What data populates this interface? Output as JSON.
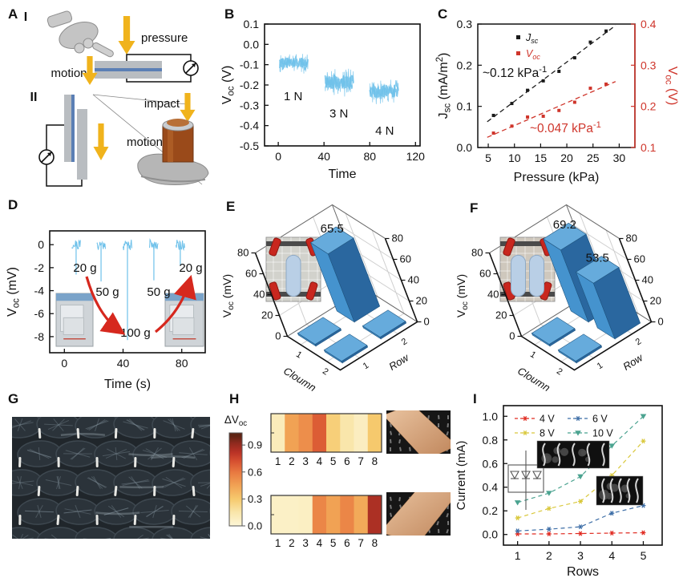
{
  "panels": [
    {
      "id": "A",
      "label": "A"
    },
    {
      "id": "B",
      "label": "B"
    },
    {
      "id": "C",
      "label": "C"
    },
    {
      "id": "D",
      "label": "D"
    },
    {
      "id": "E",
      "label": "E"
    },
    {
      "id": "F",
      "label": "F"
    },
    {
      "id": "G",
      "label": "G"
    },
    {
      "id": "H",
      "label": "H"
    },
    {
      "id": "I",
      "label": "I"
    }
  ],
  "panelA": {
    "sub1": "I",
    "sub2": "II",
    "pressure_label": "pressure",
    "motion1_label": "motion",
    "impact_label": "impact",
    "motion2_label": "motion",
    "arrow_color": "#f0b31c",
    "film_color": "#5b7fb5",
    "bar_color": "#b9bdc1"
  },
  "panelG": {
    "type": "photo",
    "content": "dark woven textile with white stitch marks"
  },
  "chart_data": [
    {
      "id": "B",
      "type": "line",
      "title": "",
      "xlabel": "Time",
      "ylabel": "V_{oc} (V)",
      "xlim": [
        -12,
        124
      ],
      "ylim": [
        -0.5,
        0.1
      ],
      "xticks": [
        0,
        40,
        80,
        120
      ],
      "yticks": [
        0.1,
        0.0,
        -0.1,
        -0.2,
        -0.3,
        -0.4,
        -0.5
      ],
      "grid": false,
      "line_color": "#6ec1ea",
      "bursts": [
        {
          "label": "1 N",
          "t_start": 1,
          "t_end": 26,
          "mean": -0.09,
          "amp": 0.055
        },
        {
          "label": "3 N",
          "t_start": 41,
          "t_end": 66,
          "mean": -0.185,
          "amp": 0.075
        },
        {
          "label": "4 N",
          "t_start": 80,
          "t_end": 105,
          "mean": -0.23,
          "amp": 0.07
        }
      ]
    },
    {
      "id": "C",
      "type": "scatter",
      "xlabel": "Pressure (kPa)",
      "ylabel_left": "J_{sc} (mA/m^{2})",
      "ylabel_right": "V_{oc} (V)",
      "xlim": [
        3,
        33
      ],
      "xticks": [
        5,
        10,
        15,
        20,
        25,
        30
      ],
      "ylim_left": [
        0.0,
        0.3
      ],
      "yticks_left": [
        0.0,
        0.1,
        0.2,
        0.3
      ],
      "ylim_right": [
        0.1,
        0.4
      ],
      "yticks_right": [
        0.1,
        0.2,
        0.3,
        0.4
      ],
      "right_axis_color": "#cf352b",
      "legend_position": "top-left",
      "series": [
        {
          "name": "J_{sc}",
          "color": "#1a1a1a",
          "axis": "left",
          "x": [
            6,
            9.5,
            12.5,
            15.5,
            18.5,
            21.5,
            24.5,
            27.5
          ],
          "y": [
            0.078,
            0.107,
            0.139,
            0.162,
            0.185,
            0.218,
            0.256,
            0.283
          ],
          "annotation": "~0.12 kPa^{-1}"
        },
        {
          "name": "V_{oc}",
          "color": "#cf352b",
          "axis": "right",
          "x": [
            6,
            9.5,
            12.5,
            15.5,
            18.5,
            21.5,
            24.5,
            27.5
          ],
          "y": [
            0.135,
            0.152,
            0.174,
            0.176,
            0.19,
            0.21,
            0.244,
            0.254
          ],
          "annotation": "~0.047 kPa^{-1}"
        }
      ]
    },
    {
      "id": "D",
      "type": "line",
      "xlabel": "Time (s)",
      "ylabel": "V_{oc} (mV)",
      "xlim": [
        -10,
        96
      ],
      "ylim": [
        -9.4,
        1.2
      ],
      "xticks": [
        0,
        40,
        80
      ],
      "yticks": [
        0,
        -2,
        -4,
        -6,
        -8
      ],
      "line_color": "#6ec1ea",
      "arrow_color": "#d6281e",
      "spikes": [
        {
          "t": 8,
          "depth": -2.6,
          "label": "20 g"
        },
        {
          "t": 25,
          "depth": -3.2,
          "label": "50 g"
        },
        {
          "t": 43,
          "depth": -8.3,
          "label": "100 g"
        },
        {
          "t": 61,
          "depth": -3.1,
          "label": "50 g"
        },
        {
          "t": 79,
          "depth": -1.8,
          "label": "20 g"
        }
      ]
    },
    {
      "id": "E",
      "type": "bar3d",
      "ylabel": "V_{oc} (mV)",
      "zlim": [
        0,
        80
      ],
      "zticks": [
        0,
        20,
        40,
        60,
        80
      ],
      "col_label": "Cloumn",
      "row_label": "Row",
      "col_ticks": [
        1,
        2
      ],
      "row_ticks": [
        1,
        2
      ],
      "bar_colors": {
        "front": "#4593ce",
        "side": "#2a679f",
        "top": "#66abdc"
      },
      "bars": [
        {
          "col": 1,
          "row": 1,
          "value": 1.8
        },
        {
          "col": 2,
          "row": 1,
          "value": 1.8
        },
        {
          "col": 2,
          "row": 2,
          "value": 1.8
        },
        {
          "col": 1,
          "row": 2,
          "value": 65.5,
          "label": "65.5"
        }
      ]
    },
    {
      "id": "F",
      "type": "bar3d",
      "ylabel": "V_{oc} (mV)",
      "zlim": [
        0,
        80
      ],
      "zticks": [
        0,
        20,
        40,
        60,
        80
      ],
      "col_label": "Cloumn",
      "row_label": "Row",
      "col_ticks": [
        1,
        2
      ],
      "row_ticks": [
        1,
        2
      ],
      "bar_colors": {
        "front": "#4593ce",
        "side": "#2a679f",
        "top": "#66abdc"
      },
      "bars": [
        {
          "col": 1,
          "row": 1,
          "value": 1.8
        },
        {
          "col": 2,
          "row": 1,
          "value": 1.8
        },
        {
          "col": 1,
          "row": 2,
          "value": 69.2,
          "label": "69.2"
        },
        {
          "col": 2,
          "row": 2,
          "value": 53.5,
          "label": "53.5"
        }
      ]
    },
    {
      "id": "H",
      "type": "heatmap",
      "colorbar_label": "ΔV_{oc}",
      "colorbar_ticks": [
        0.0,
        0.3,
        0.6,
        0.9
      ],
      "colormap_stops": [
        [
          0,
          "#fdf6d8"
        ],
        [
          0.15,
          "#f9e6ab"
        ],
        [
          0.3,
          "#f6c96d"
        ],
        [
          0.45,
          "#f1a254"
        ],
        [
          0.6,
          "#e87840"
        ],
        [
          0.72,
          "#d64f30"
        ],
        [
          0.82,
          "#b93226"
        ],
        [
          0.92,
          "#8f2a1e"
        ],
        [
          1,
          "#5f2414"
        ]
      ],
      "cell_labels": [
        1,
        2,
        3,
        4,
        5,
        6,
        7,
        8
      ],
      "rows": [
        {
          "values": [
            0.1,
            0.45,
            0.52,
            0.68,
            0.27,
            0.15,
            0.08,
            0.3
          ]
        },
        {
          "values": [
            0.06,
            0.06,
            0.07,
            0.55,
            0.45,
            0.55,
            0.42,
            0.85
          ]
        }
      ]
    },
    {
      "id": "I",
      "type": "line",
      "xlabel": "Rows",
      "ylabel": "Current (mA)",
      "xlim": [
        0.55,
        5.6
      ],
      "ylim": [
        -0.09,
        1.09
      ],
      "xticks": [
        1,
        2,
        3,
        4,
        5
      ],
      "yticks": [
        0.0,
        0.2,
        0.4,
        0.6,
        0.8,
        1.0
      ],
      "legend_position": "top-left",
      "x": [
        1,
        2,
        3,
        4,
        5
      ],
      "series": [
        {
          "name": "4 V",
          "color": "#e02a20",
          "marker": "star",
          "values": [
            0.005,
            0.005,
            0.008,
            0.012,
            0.015
          ]
        },
        {
          "name": "6 V",
          "color": "#3c6da6",
          "marker": "star",
          "values": [
            0.03,
            0.045,
            0.065,
            0.18,
            0.245
          ]
        },
        {
          "name": "8 V",
          "color": "#d9c83c",
          "marker": "star",
          "values": [
            0.14,
            0.22,
            0.28,
            0.5,
            0.79
          ]
        },
        {
          "name": "10 V",
          "color": "#4ba390",
          "marker": "triangle-down",
          "values": [
            0.27,
            0.35,
            0.49,
            0.75,
            1.0
          ]
        }
      ]
    }
  ]
}
